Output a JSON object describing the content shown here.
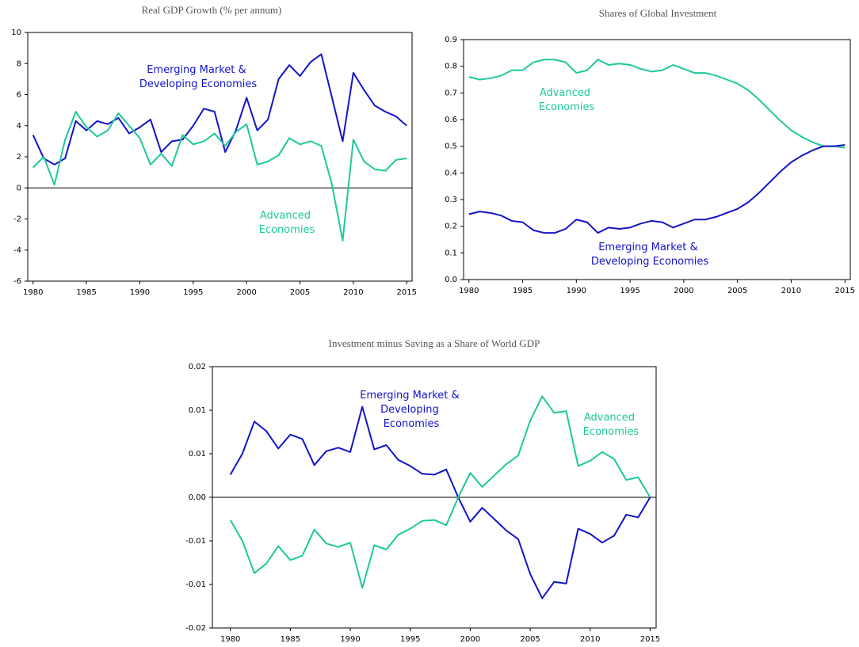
{
  "chart_data": [
    {
      "type": "line",
      "title": "Real GDP Growth (% per annum)",
      "x": [
        1980,
        1981,
        1982,
        1983,
        1984,
        1985,
        1986,
        1987,
        1988,
        1989,
        1990,
        1991,
        1992,
        1993,
        1994,
        1995,
        1996,
        1997,
        1998,
        1999,
        2000,
        2001,
        2002,
        2003,
        2004,
        2005,
        2006,
        2007,
        2008,
        2009,
        2010,
        2011,
        2012,
        2013,
        2014,
        2015
      ],
      "xlim": [
        1979.5,
        2015.5
      ],
      "xticks": [
        1980,
        1985,
        1990,
        1995,
        2000,
        2005,
        2010,
        2015
      ],
      "ylim": [
        -6,
        10
      ],
      "yticks": [
        -6,
        -4,
        -2,
        0,
        2,
        4,
        6,
        8,
        10
      ],
      "series": [
        {
          "name": "Emerging Market & Developing Economies",
          "color": "#1414c8",
          "values": [
            3.4,
            1.9,
            1.5,
            1.9,
            4.3,
            3.7,
            4.3,
            4.1,
            4.5,
            3.5,
            3.9,
            4.4,
            2.3,
            3.0,
            3.1,
            4.0,
            5.1,
            4.9,
            2.3,
            3.7,
            5.8,
            3.7,
            4.4,
            7.0,
            7.9,
            7.2,
            8.1,
            8.6,
            5.8,
            3.0,
            7.4,
            6.3,
            5.3,
            4.9,
            4.6,
            4.0
          ]
        },
        {
          "name": "Advanced Economies",
          "color": "#1ec89b",
          "values": [
            1.3,
            2.0,
            0.2,
            3.1,
            4.9,
            3.9,
            3.3,
            3.7,
            4.8,
            4.0,
            3.2,
            1.5,
            2.2,
            1.4,
            3.4,
            2.8,
            3.0,
            3.5,
            2.7,
            3.6,
            4.1,
            1.5,
            1.7,
            2.1,
            3.2,
            2.8,
            3.0,
            2.7,
            0.2,
            -3.4,
            3.1,
            1.7,
            1.2,
            1.1,
            1.8,
            1.9
          ]
        }
      ]
    },
    {
      "type": "line",
      "title": "Shares of Global Investment",
      "x": [
        1980,
        1981,
        1982,
        1983,
        1984,
        1985,
        1986,
        1987,
        1988,
        1989,
        1990,
        1991,
        1992,
        1993,
        1994,
        1995,
        1996,
        1997,
        1998,
        1999,
        2000,
        2001,
        2002,
        2003,
        2004,
        2005,
        2006,
        2007,
        2008,
        2009,
        2010,
        2011,
        2012,
        2013,
        2014,
        2015
      ],
      "xlim": [
        1979.5,
        2015.5
      ],
      "xticks": [
        1980,
        1985,
        1990,
        1995,
        2000,
        2005,
        2010,
        2015
      ],
      "ylim": [
        0,
        0.9
      ],
      "yticks": [
        {
          "value": 0,
          "label": "0.0"
        },
        0.1,
        0.2,
        0.3,
        0.4,
        0.5,
        0.6,
        0.7,
        0.8,
        0.9
      ],
      "series": [
        {
          "name": "Advanced Economies",
          "color": "#1ec89b",
          "values": [
            0.76,
            0.75,
            0.755,
            0.765,
            0.785,
            0.785,
            0.815,
            0.825,
            0.825,
            0.815,
            0.775,
            0.785,
            0.825,
            0.805,
            0.81,
            0.805,
            0.79,
            0.78,
            0.785,
            0.805,
            0.79,
            0.775,
            0.775,
            0.765,
            0.75,
            0.735,
            0.71,
            0.675,
            0.635,
            0.595,
            0.56,
            0.535,
            0.515,
            0.5,
            0.5,
            0.495
          ]
        },
        {
          "name": "Emerging Market & Developing Economies",
          "color": "#1414c8",
          "values": [
            0.245,
            0.255,
            0.25,
            0.24,
            0.22,
            0.215,
            0.185,
            0.175,
            0.175,
            0.19,
            0.225,
            0.215,
            0.175,
            0.195,
            0.19,
            0.195,
            0.21,
            0.22,
            0.215,
            0.195,
            0.21,
            0.225,
            0.225,
            0.235,
            0.25,
            0.265,
            0.29,
            0.325,
            0.365,
            0.405,
            0.44,
            0.465,
            0.485,
            0.5,
            0.5,
            0.505
          ]
        }
      ]
    },
    {
      "type": "line",
      "title": "Investment minus Saving as a Share of  World GDP",
      "x": [
        1980,
        1981,
        1982,
        1983,
        1984,
        1985,
        1986,
        1987,
        1988,
        1989,
        1990,
        1991,
        1992,
        1993,
        1994,
        1995,
        1996,
        1997,
        1998,
        1999,
        2000,
        2001,
        2002,
        2003,
        2004,
        2005,
        2006,
        2007,
        2008,
        2009,
        2010,
        2011,
        2012,
        2013,
        2014,
        2015
      ],
      "xlim": [
        1978.5,
        2015.5
      ],
      "xticks": [
        1980,
        1985,
        1990,
        1995,
        2000,
        2005,
        2010,
        2015
      ],
      "ylim": [
        -0.015,
        0.015
      ],
      "yticks": [
        {
          "value": -0.015,
          "label": "-0.02"
        },
        {
          "value": -0.01,
          "label": "-0.01"
        },
        {
          "value": -0.005,
          "label": "-0.01"
        },
        {
          "value": 0,
          "label": "0.00"
        },
        {
          "value": 0.005,
          "label": "0.01"
        },
        0.01,
        {
          "value": 0.015,
          "label": "0.02"
        }
      ],
      "series": [
        {
          "name": "Emerging Market & Developing Economies",
          "color": "#1414c8",
          "values": [
            0.0026,
            0.005,
            0.0087,
            0.0076,
            0.0056,
            0.0072,
            0.0067,
            0.0037,
            0.0053,
            0.0057,
            0.0052,
            0.0104,
            0.0055,
            0.006,
            0.0043,
            0.0036,
            0.0027,
            0.0026,
            0.0032,
            0,
            -0.0028,
            -0.0012,
            -0.0025,
            -0.0038,
            -0.0048,
            -0.0088,
            -0.0116,
            -0.0097,
            -0.0099,
            -0.0036,
            -0.0042,
            -0.0052,
            -0.0044,
            -0.002,
            -0.0023,
            0
          ]
        },
        {
          "name": "Advanced Economies",
          "color": "#1ec89b",
          "values": [
            -0.0026,
            -0.005,
            -0.0087,
            -0.0076,
            -0.0056,
            -0.0072,
            -0.0067,
            -0.0037,
            -0.0053,
            -0.0057,
            -0.0052,
            -0.0104,
            -0.0055,
            -0.006,
            -0.0043,
            -0.0036,
            -0.0027,
            -0.0026,
            -0.0032,
            0,
            0.0028,
            0.0012,
            0.0025,
            0.0038,
            0.0048,
            0.0088,
            0.0116,
            0.0097,
            0.0099,
            0.0036,
            0.0042,
            0.0052,
            0.0044,
            0.002,
            0.0023,
            0
          ]
        }
      ]
    }
  ]
}
